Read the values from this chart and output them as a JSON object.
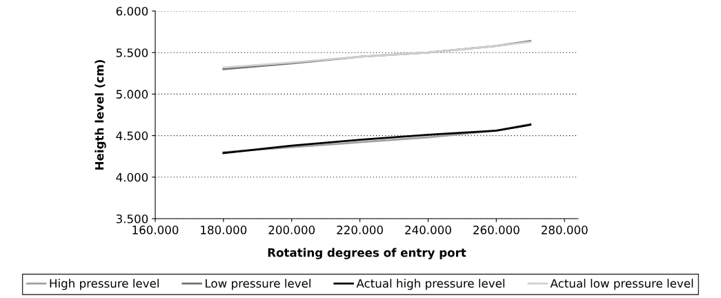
{
  "chart_data": {
    "type": "line",
    "xlabel": "Rotating degrees of entry port",
    "ylabel": "Heigth level (cm)",
    "x": [
      180,
      200,
      220,
      240,
      260,
      270
    ],
    "series": [
      {
        "name": "High pressure level",
        "color": "#a0a0a0",
        "values": [
          4.3,
          4.36,
          4.42,
          4.48,
          4.56,
          4.64
        ]
      },
      {
        "name": "Low pressure level",
        "color": "#707070",
        "values": [
          5.3,
          5.37,
          5.45,
          5.5,
          5.58,
          5.64
        ]
      },
      {
        "name": "Actual high pressure level",
        "color": "#000000",
        "values": [
          4.29,
          4.38,
          4.45,
          4.51,
          4.56,
          4.63
        ]
      },
      {
        "name": "Actual low pressure level",
        "color": "#d0d0d0",
        "values": [
          5.32,
          5.38,
          5.45,
          5.5,
          5.58,
          5.63
        ]
      }
    ],
    "xlim": [
      160,
      284
    ],
    "xticks": [
      {
        "value": 160,
        "label": "160.000"
      },
      {
        "value": 180,
        "label": "180.000"
      },
      {
        "value": 200,
        "label": "200.000"
      },
      {
        "value": 220,
        "label": "220.000"
      },
      {
        "value": 240,
        "label": "240.000"
      },
      {
        "value": 260,
        "label": "260.000"
      },
      {
        "value": 280,
        "label": "280.000"
      }
    ],
    "ylim": [
      3.5,
      6.0
    ],
    "yticks": [
      {
        "value": 3.5,
        "label": "3.500"
      },
      {
        "value": 4.0,
        "label": "4.000"
      },
      {
        "value": 4.5,
        "label": "4.500"
      },
      {
        "value": 5.0,
        "label": "5.000"
      },
      {
        "value": 5.5,
        "label": "5.500"
      },
      {
        "value": 6.0,
        "label": "6.000"
      }
    ],
    "grid": "y",
    "legend": "bottom",
    "marker": "none",
    "line_style": "solid"
  }
}
